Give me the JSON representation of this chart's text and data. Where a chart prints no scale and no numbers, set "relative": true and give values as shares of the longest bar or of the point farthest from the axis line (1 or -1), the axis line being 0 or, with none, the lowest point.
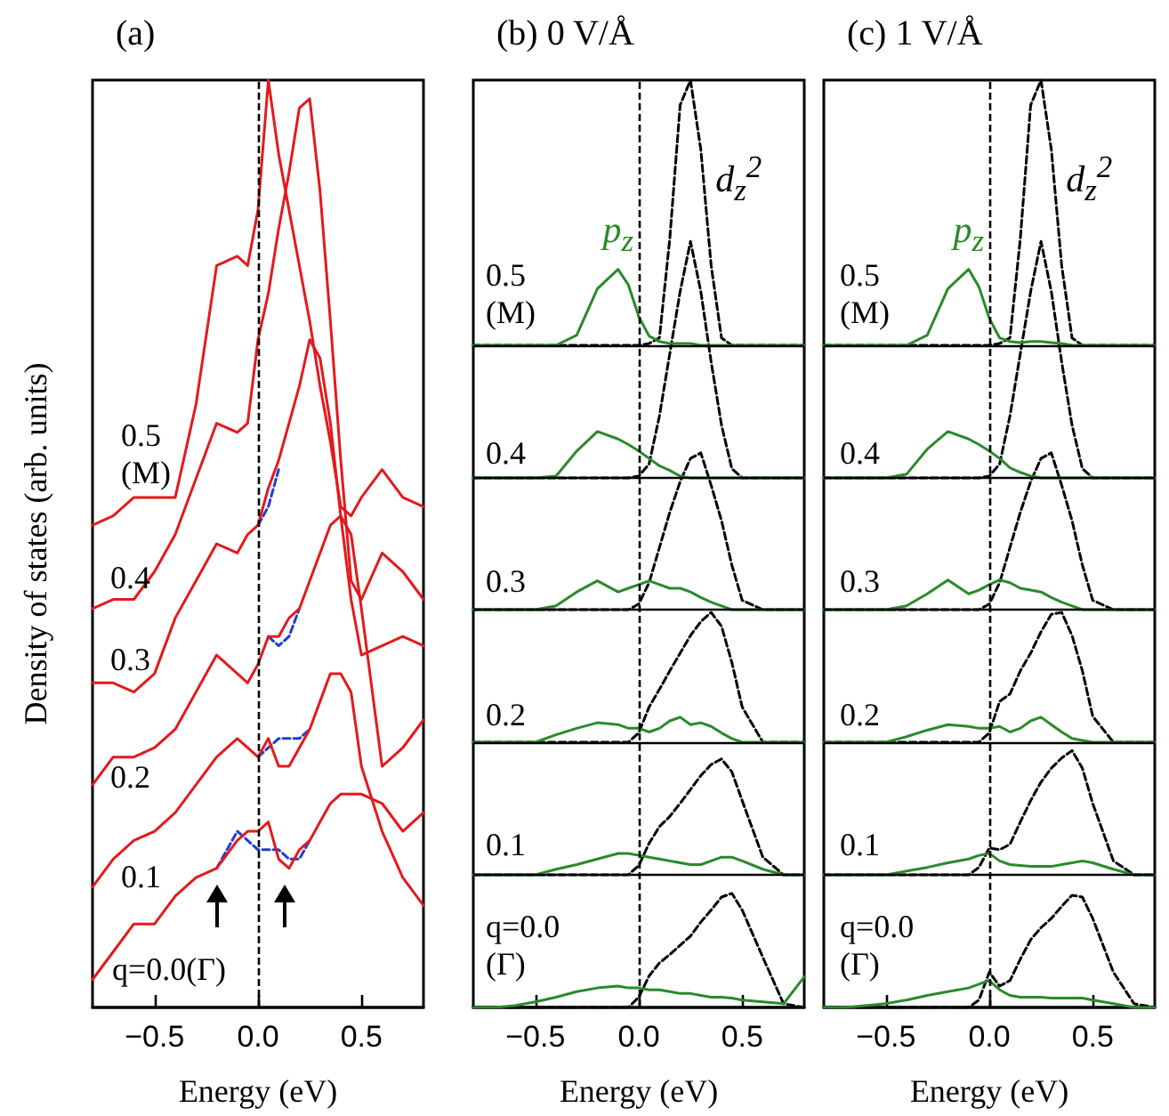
{
  "chart_data": [
    {
      "type": "line",
      "title": "(a)",
      "xlabel": "Energy (eV)",
      "ylabel": "Density of states (arb. units)",
      "relative": true,
      "x": [
        -0.8,
        -0.7,
        -0.6,
        -0.5,
        -0.4,
        -0.3,
        -0.2,
        -0.1,
        -0.05,
        0,
        0.05,
        0.1,
        0.15,
        0.2,
        0.25,
        0.3,
        0.35,
        0.4,
        0.45,
        0.5,
        0.6,
        0.7,
        0.8
      ],
      "xlim": [
        -0.8,
        0.8
      ],
      "xticks": [
        {
          "value": -0.5,
          "label": "−0.5"
        },
        {
          "value": 0,
          "label": "0.0"
        },
        {
          "value": 0.5,
          "label": "0.5"
        }
      ],
      "ref_lines": [
        {
          "axis": "x",
          "value": 0,
          "color": "#000000",
          "line_style": "dashed"
        }
      ],
      "annotations": [
        "0.5\n(M)",
        "0.4",
        "0.3",
        "0.2",
        "0.1",
        "q=0.0(Γ)"
      ],
      "series": [
        {
          "color": "#1f3fd0",
          "line_style": "dashed",
          "values": [
            null,
            null,
            null,
            null,
            null,
            null,
            0.15,
            0.19,
            0.18,
            0.17,
            0.17,
            0.17,
            0.16,
            0.16,
            0.18,
            null,
            null,
            null,
            null,
            null,
            null,
            null,
            null
          ]
        },
        {
          "color": "#e31a1c",
          "line_style": "solid",
          "values": [
            0.03,
            0.06,
            0.09,
            0.09,
            0.12,
            0.14,
            0.15,
            0.18,
            0.19,
            0.19,
            0.2,
            0.16,
            0.15,
            0.17,
            0.18,
            0.2,
            0.22,
            0.23,
            0.23,
            0.23,
            0.22,
            0.19,
            0.21
          ]
        },
        {
          "color": "#1f3fd0",
          "line_style": "dashed",
          "values": [
            null,
            null,
            null,
            null,
            null,
            null,
            null,
            null,
            null,
            0.27,
            0.28,
            0.29,
            0.29,
            0.29,
            0.3,
            null,
            null,
            null,
            null,
            null,
            null,
            null,
            null
          ]
        },
        {
          "color": "#e31a1c",
          "line_style": "solid",
          "values": [
            0.13,
            0.16,
            0.18,
            0.19,
            0.21,
            0.24,
            0.27,
            0.29,
            0.28,
            0.27,
            0.29,
            0.26,
            0.26,
            0.28,
            0.3,
            0.33,
            0.36,
            0.36,
            0.34,
            0.26,
            0.19,
            0.14,
            0.11
          ]
        },
        {
          "color": "#1f3fd0",
          "line_style": "dashed",
          "values": [
            null,
            null,
            null,
            null,
            null,
            null,
            null,
            null,
            null,
            null,
            0.4,
            0.39,
            0.4,
            0.43,
            null,
            null,
            null,
            null,
            null,
            null,
            null,
            null,
            null
          ]
        },
        {
          "color": "#e31a1c",
          "line_style": "solid",
          "values": [
            0.24,
            0.27,
            0.27,
            0.28,
            0.3,
            0.34,
            0.38,
            0.36,
            0.35,
            0.37,
            0.4,
            0.4,
            0.42,
            0.43,
            0.46,
            0.49,
            0.52,
            0.53,
            0.51,
            0.43,
            0.26,
            0.28,
            0.31
          ]
        },
        {
          "color": "#1f3fd0",
          "line_style": "dashed",
          "values": [
            null,
            null,
            null,
            null,
            null,
            null,
            null,
            null,
            null,
            0.52,
            0.54,
            0.58,
            null,
            null,
            null,
            null,
            null,
            null,
            null,
            null,
            null,
            null,
            null
          ]
        },
        {
          "color": "#e31a1c",
          "line_style": "solid",
          "values": [
            0.35,
            0.35,
            0.34,
            0.36,
            0.42,
            0.46,
            0.5,
            0.49,
            0.51,
            0.52,
            0.56,
            0.59,
            0.63,
            0.67,
            0.72,
            0.7,
            0.63,
            0.53,
            0.44,
            0.38,
            0.39,
            0.4,
            0.39
          ]
        },
        {
          "color": "#e31a1c",
          "line_style": "solid",
          "values": [
            0.43,
            0.44,
            0.44,
            0.47,
            0.51,
            0.57,
            0.63,
            0.62,
            0.63,
            0.72,
            0.77,
            0.84,
            0.9,
            0.97,
            0.98,
            0.88,
            0.74,
            0.59,
            0.46,
            0.44,
            0.49,
            0.47,
            0.44
          ]
        },
        {
          "color": "#e31a1c",
          "line_style": "solid",
          "values": [
            0.52,
            0.53,
            0.55,
            0.55,
            0.55,
            0.65,
            0.8,
            0.81,
            0.8,
            0.86,
            1,
            0.92,
            0.86,
            0.8,
            0.74,
            0.67,
            0.61,
            0.54,
            0.53,
            0.55,
            0.58,
            0.55,
            0.54
          ]
        }
      ]
    },
    {
      "type": "line",
      "title": "(b) 0 V/Å",
      "xlabel": "Energy (eV)",
      "relative": true,
      "x": [
        -0.8,
        -0.7,
        -0.6,
        -0.5,
        -0.4,
        -0.3,
        -0.2,
        -0.1,
        -0.05,
        0,
        0.05,
        0.1,
        0.15,
        0.2,
        0.25,
        0.3,
        0.35,
        0.4,
        0.45,
        0.5,
        0.6,
        0.7,
        0.8
      ],
      "xlim": [
        -0.8,
        0.8
      ],
      "xticks": [
        {
          "value": -0.5,
          "label": "−0.5"
        },
        {
          "value": 0,
          "label": "0.0"
        },
        {
          "value": 0.5,
          "label": "0.5"
        }
      ],
      "ref_lines": [
        {
          "axis": "x",
          "value": 0,
          "color": "#000000",
          "line_style": "dashed"
        },
        {
          "axis": "y",
          "value": 0.143,
          "color": "#000000",
          "line_style": "solid"
        },
        {
          "axis": "y",
          "value": 0.286,
          "color": "#000000",
          "line_style": "solid"
        },
        {
          "axis": "y",
          "value": 0.429,
          "color": "#000000",
          "line_style": "solid"
        },
        {
          "axis": "y",
          "value": 0.571,
          "color": "#000000",
          "line_style": "solid"
        },
        {
          "axis": "y",
          "value": 0.714,
          "color": "#000000",
          "line_style": "solid"
        }
      ],
      "annotations": [
        "0.5\n(M)",
        "0.4",
        "0.3",
        "0.2",
        "0.1",
        "q=0.0\n(Γ)"
      ],
      "series": [
        {
          "color": "#000000",
          "line_style": "dashed",
          "values": [
            0,
            0,
            0,
            0,
            0,
            0,
            0,
            0,
            0,
            0.011,
            0.034,
            0.048,
            0.057,
            0.067,
            0.077,
            0.092,
            0.105,
            0.119,
            0.123,
            0.105,
            0.054,
            0.004,
            0
          ]
        },
        {
          "color": "#2a8a2a",
          "line_style": "solid",
          "values": [
            0,
            0,
            0.002,
            0.006,
            0.011,
            0.017,
            0.021,
            0.023,
            0.021,
            0.021,
            0.019,
            0.019,
            0.017,
            0.015,
            0.015,
            0.013,
            0.011,
            0.011,
            0.01,
            0.008,
            0.006,
            0.004,
            0.033
          ]
        },
        {
          "color": "#000000",
          "line_style": "dashed",
          "values": [
            0.143,
            0.143,
            0.143,
            0.143,
            0.143,
            0.143,
            0.143,
            0.143,
            0.143,
            0.153,
            0.177,
            0.195,
            0.206,
            0.22,
            0.235,
            0.25,
            0.262,
            0.268,
            0.254,
            0.223,
            0.162,
            0.143,
            0.143
          ]
        },
        {
          "color": "#2a8a2a",
          "line_style": "solid",
          "values": [
            0.143,
            0.143,
            0.143,
            0.143,
            0.149,
            0.154,
            0.16,
            0.166,
            0.166,
            0.164,
            0.162,
            0.16,
            0.158,
            0.156,
            0.154,
            0.154,
            0.158,
            0.162,
            0.162,
            0.158,
            0.149,
            0.143,
            0.143
          ]
        },
        {
          "color": "#000000",
          "line_style": "dashed",
          "values": [
            0.286,
            0.286,
            0.286,
            0.286,
            0.286,
            0.286,
            0.286,
            0.286,
            0.286,
            0.296,
            0.324,
            0.343,
            0.363,
            0.382,
            0.401,
            0.416,
            0.426,
            0.411,
            0.372,
            0.324,
            0.286,
            0.286,
            0.286
          ]
        },
        {
          "color": "#2a8a2a",
          "line_style": "solid",
          "values": [
            0.286,
            0.286,
            0.286,
            0.286,
            0.294,
            0.301,
            0.307,
            0.305,
            0.301,
            0.301,
            0.297,
            0.301,
            0.309,
            0.313,
            0.305,
            0.307,
            0.303,
            0.296,
            0.29,
            0.286,
            0.286,
            0.286,
            0.286
          ]
        },
        {
          "color": "#000000",
          "line_style": "dashed",
          "values": [
            0.429,
            0.429,
            0.429,
            0.429,
            0.429,
            0.429,
            0.429,
            0.429,
            0.429,
            0.435,
            0.458,
            0.496,
            0.534,
            0.567,
            0.592,
            0.598,
            0.563,
            0.525,
            0.477,
            0.439,
            0.429,
            0.429,
            0.429
          ]
        },
        {
          "color": "#2a8a2a",
          "line_style": "solid",
          "values": [
            0.429,
            0.429,
            0.429,
            0.429,
            0.433,
            0.448,
            0.46,
            0.448,
            0.452,
            0.456,
            0.46,
            0.456,
            0.452,
            0.452,
            0.448,
            0.442,
            0.437,
            0.433,
            0.429,
            0.429,
            0.429,
            0.429,
            0.429
          ]
        },
        {
          "color": "#000000",
          "line_style": "dashed",
          "values": [
            0.571,
            0.571,
            0.571,
            0.571,
            0.571,
            0.571,
            0.571,
            0.571,
            0.571,
            0.573,
            0.586,
            0.638,
            0.705,
            0.772,
            0.826,
            0.772,
            0.696,
            0.628,
            0.581,
            0.571,
            0.571,
            0.571,
            0.571
          ]
        },
        {
          "color": "#2a8a2a",
          "line_style": "solid",
          "values": [
            0.571,
            0.571,
            0.571,
            0.571,
            0.573,
            0.6,
            0.621,
            0.613,
            0.607,
            0.6,
            0.592,
            0.584,
            0.579,
            0.573,
            0.571,
            0.571,
            0.571,
            0.571,
            0.571,
            0.571,
            0.571,
            0.571,
            0.571
          ]
        },
        {
          "name": "d$_{z}$$^{2}$",
          "color": "#000000",
          "line_style": "dashed",
          "values": [
            0.714,
            0.714,
            0.714,
            0.714,
            0.714,
            0.714,
            0.714,
            0.714,
            0.714,
            0.714,
            0.716,
            0.722,
            0.829,
            0.973,
            1,
            0.925,
            0.8,
            0.722,
            0.714,
            0.714,
            0.714,
            0.714,
            0.714
          ]
        },
        {
          "name": "p$_{z}$",
          "color": "#2a8a2a",
          "line_style": "solid",
          "values": [
            0.714,
            0.714,
            0.714,
            0.714,
            0.714,
            0.725,
            0.775,
            0.796,
            0.779,
            0.745,
            0.724,
            0.718,
            0.716,
            0.716,
            0.716,
            0.714,
            0.714,
            0.714,
            0.714,
            0.714,
            0.714,
            0.714,
            0.714
          ]
        }
      ]
    },
    {
      "type": "line",
      "title": "(c) 1 V/Å",
      "xlabel": "Energy (eV)",
      "relative": true,
      "x": [
        -0.8,
        -0.7,
        -0.6,
        -0.5,
        -0.4,
        -0.3,
        -0.2,
        -0.1,
        -0.05,
        0,
        0.05,
        0.1,
        0.15,
        0.2,
        0.25,
        0.3,
        0.35,
        0.4,
        0.45,
        0.5,
        0.6,
        0.7,
        0.8
      ],
      "xlim": [
        -0.8,
        0.8
      ],
      "xticks": [
        {
          "value": -0.5,
          "label": "−0.5"
        },
        {
          "value": 0,
          "label": "0.0"
        },
        {
          "value": 0.5,
          "label": "0.5"
        }
      ],
      "ref_lines": [
        {
          "axis": "x",
          "value": 0,
          "color": "#000000",
          "line_style": "dashed"
        },
        {
          "axis": "y",
          "value": 0.143,
          "color": "#000000",
          "line_style": "solid"
        },
        {
          "axis": "y",
          "value": 0.286,
          "color": "#000000",
          "line_style": "solid"
        },
        {
          "axis": "y",
          "value": 0.429,
          "color": "#000000",
          "line_style": "solid"
        },
        {
          "axis": "y",
          "value": 0.571,
          "color": "#000000",
          "line_style": "solid"
        },
        {
          "axis": "y",
          "value": 0.714,
          "color": "#000000",
          "line_style": "solid"
        }
      ],
      "annotations": [
        "0.5\n(M)",
        "0.4",
        "0.3",
        "0.2",
        "0.1",
        "q=0.0\n(Γ)"
      ],
      "series": [
        {
          "color": "#000000",
          "line_style": "dashed",
          "values": [
            0,
            0,
            0,
            0,
            0,
            0,
            0,
            0,
            0.008,
            0.038,
            0.023,
            0.029,
            0.052,
            0.073,
            0.086,
            0.096,
            0.109,
            0.121,
            0.119,
            0.096,
            0.038,
            0.004,
            0
          ]
        },
        {
          "color": "#2a8a2a",
          "line_style": "solid",
          "values": [
            0,
            0,
            0.002,
            0.004,
            0.008,
            0.013,
            0.017,
            0.021,
            0.025,
            0.029,
            0.019,
            0.013,
            0.011,
            0.011,
            0.011,
            0.01,
            0.01,
            0.01,
            0.01,
            0.008,
            0.004,
            0,
            0
          ]
        },
        {
          "color": "#000000",
          "line_style": "dashed",
          "values": [
            0.143,
            0.143,
            0.143,
            0.143,
            0.143,
            0.143,
            0.143,
            0.143,
            0.151,
            0.172,
            0.17,
            0.176,
            0.2,
            0.223,
            0.243,
            0.258,
            0.269,
            0.277,
            0.258,
            0.22,
            0.158,
            0.143,
            0.143
          ]
        },
        {
          "color": "#2a8a2a",
          "line_style": "solid",
          "values": [
            0.143,
            0.143,
            0.143,
            0.143,
            0.147,
            0.151,
            0.156,
            0.16,
            0.164,
            0.166,
            0.158,
            0.154,
            0.153,
            0.152,
            0.152,
            0.152,
            0.154,
            0.156,
            0.158,
            0.156,
            0.149,
            0.143,
            0.143
          ]
        },
        {
          "color": "#000000",
          "line_style": "dashed",
          "values": [
            0.286,
            0.286,
            0.286,
            0.286,
            0.286,
            0.286,
            0.286,
            0.286,
            0.286,
            0.296,
            0.33,
            0.338,
            0.363,
            0.382,
            0.405,
            0.424,
            0.426,
            0.401,
            0.363,
            0.314,
            0.286,
            0.286,
            0.286
          ]
        },
        {
          "color": "#2a8a2a",
          "line_style": "solid",
          "values": [
            0.286,
            0.286,
            0.286,
            0.286,
            0.292,
            0.299,
            0.305,
            0.303,
            0.301,
            0.301,
            0.303,
            0.297,
            0.301,
            0.309,
            0.313,
            0.305,
            0.297,
            0.29,
            0.288,
            0.286,
            0.286,
            0.286,
            0.286
          ]
        },
        {
          "color": "#000000",
          "line_style": "dashed",
          "values": [
            0.429,
            0.429,
            0.429,
            0.429,
            0.429,
            0.429,
            0.429,
            0.429,
            0.429,
            0.435,
            0.458,
            0.496,
            0.534,
            0.567,
            0.592,
            0.598,
            0.563,
            0.525,
            0.477,
            0.439,
            0.429,
            0.429,
            0.429
          ]
        },
        {
          "color": "#2a8a2a",
          "line_style": "solid",
          "values": [
            0.429,
            0.429,
            0.429,
            0.429,
            0.433,
            0.446,
            0.461,
            0.446,
            0.45,
            0.456,
            0.461,
            0.458,
            0.452,
            0.45,
            0.448,
            0.442,
            0.437,
            0.433,
            0.429,
            0.429,
            0.429,
            0.429,
            0.429
          ]
        },
        {
          "color": "#000000",
          "line_style": "dashed",
          "values": [
            0.571,
            0.571,
            0.571,
            0.571,
            0.571,
            0.571,
            0.571,
            0.571,
            0.571,
            0.573,
            0.586,
            0.638,
            0.705,
            0.772,
            0.826,
            0.772,
            0.696,
            0.628,
            0.581,
            0.571,
            0.571,
            0.571,
            0.571
          ]
        },
        {
          "color": "#2a8a2a",
          "line_style": "solid",
          "values": [
            0.571,
            0.571,
            0.571,
            0.571,
            0.575,
            0.602,
            0.621,
            0.613,
            0.607,
            0.6,
            0.592,
            0.582,
            0.577,
            0.573,
            0.571,
            0.571,
            0.571,
            0.571,
            0.571,
            0.571,
            0.571,
            0.571,
            0.571
          ]
        },
        {
          "name": "d$_{z}$$^{2}$",
          "color": "#000000",
          "line_style": "dashed",
          "values": [
            0.714,
            0.714,
            0.714,
            0.714,
            0.714,
            0.714,
            0.714,
            0.714,
            0.714,
            0.714,
            0.716,
            0.722,
            0.829,
            0.973,
            1,
            0.925,
            0.8,
            0.722,
            0.714,
            0.714,
            0.714,
            0.714,
            0.714
          ]
        },
        {
          "name": "p$_{z}$",
          "color": "#2a8a2a",
          "line_style": "solid",
          "values": [
            0.714,
            0.714,
            0.714,
            0.714,
            0.714,
            0.725,
            0.775,
            0.796,
            0.777,
            0.743,
            0.722,
            0.718,
            0.717,
            0.718,
            0.718,
            0.717,
            0.716,
            0.714,
            0.714,
            0.714,
            0.714,
            0.714,
            0.714
          ]
        }
      ]
    }
  ]
}
